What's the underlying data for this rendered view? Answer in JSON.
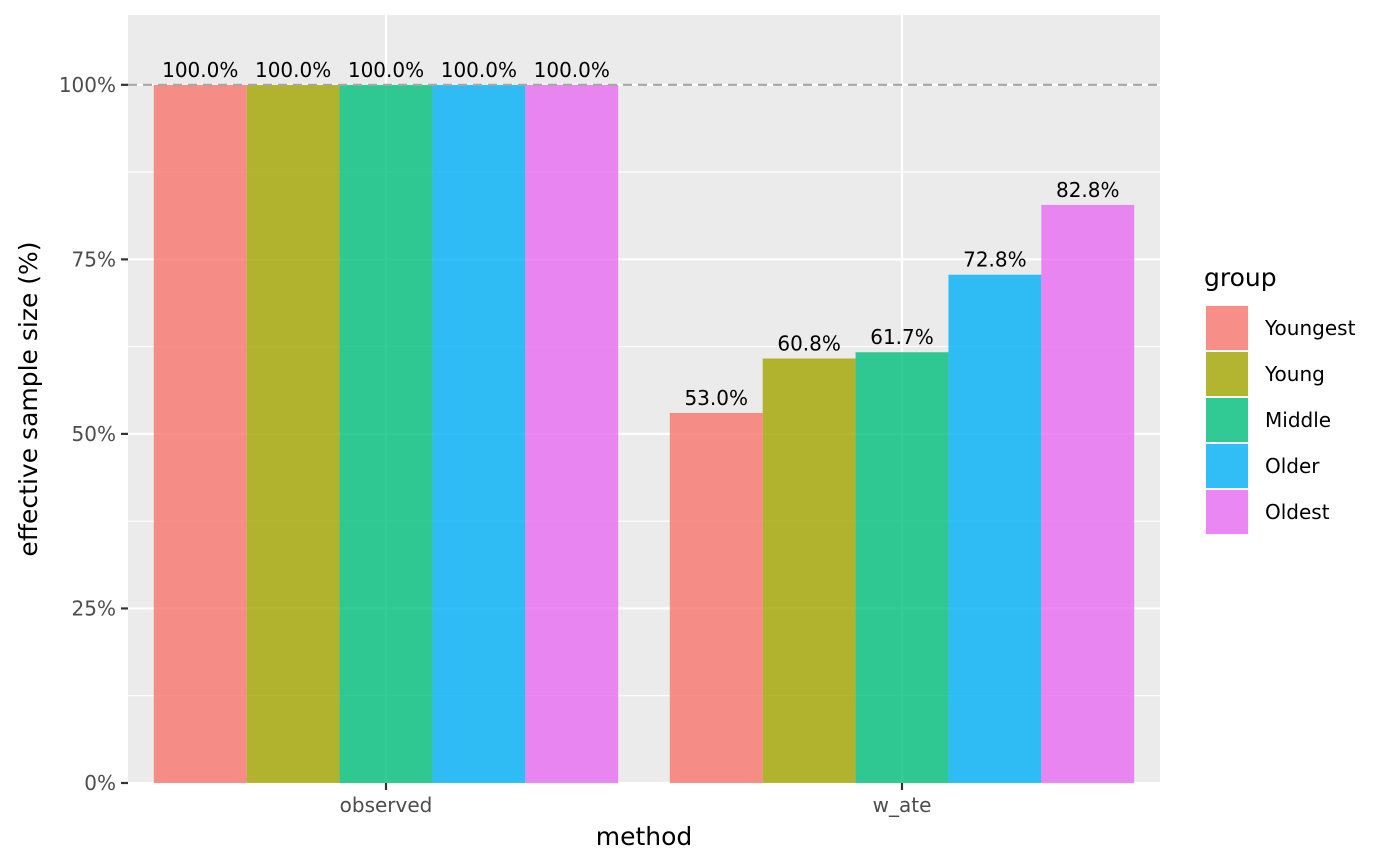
{
  "chart_data": {
    "type": "bar",
    "categories": [
      "observed",
      "w_ate"
    ],
    "series": [
      {
        "name": "Youngest",
        "values": [
          100.0,
          53.0
        ],
        "labels": [
          "100.0%",
          "53.0%"
        ],
        "color": "#F8766D"
      },
      {
        "name": "Young",
        "values": [
          100.0,
          60.8
        ],
        "labels": [
          "100.0%",
          "60.8%"
        ],
        "color": "#A3A500"
      },
      {
        "name": "Middle",
        "values": [
          100.0,
          61.7
        ],
        "labels": [
          "100.0%",
          "61.7%"
        ],
        "color": "#00BF7D"
      },
      {
        "name": "Older",
        "values": [
          100.0,
          72.8
        ],
        "labels": [
          "100.0%",
          "72.8%"
        ],
        "color": "#00B0F6"
      },
      {
        "name": "Oldest",
        "values": [
          100.0,
          82.8
        ],
        "labels": [
          "100.0%",
          "82.8%"
        ],
        "color": "#E76BF3"
      }
    ],
    "xlabel": "method",
    "ylabel": "effective sample size (%)",
    "ylim": [
      0,
      110
    ],
    "yticks": [
      0,
      25,
      50,
      75,
      100
    ],
    "ytick_labels": [
      "0%",
      "25%",
      "50%",
      "75%",
      "100%"
    ],
    "reference_line": {
      "y": 100,
      "style": "dashed",
      "color": "#A6A6A6"
    },
    "legend": {
      "title": "group",
      "placement": "right"
    },
    "grid": true,
    "panel_background": "#EBEBEB",
    "bar_opacity": 0.8
  }
}
